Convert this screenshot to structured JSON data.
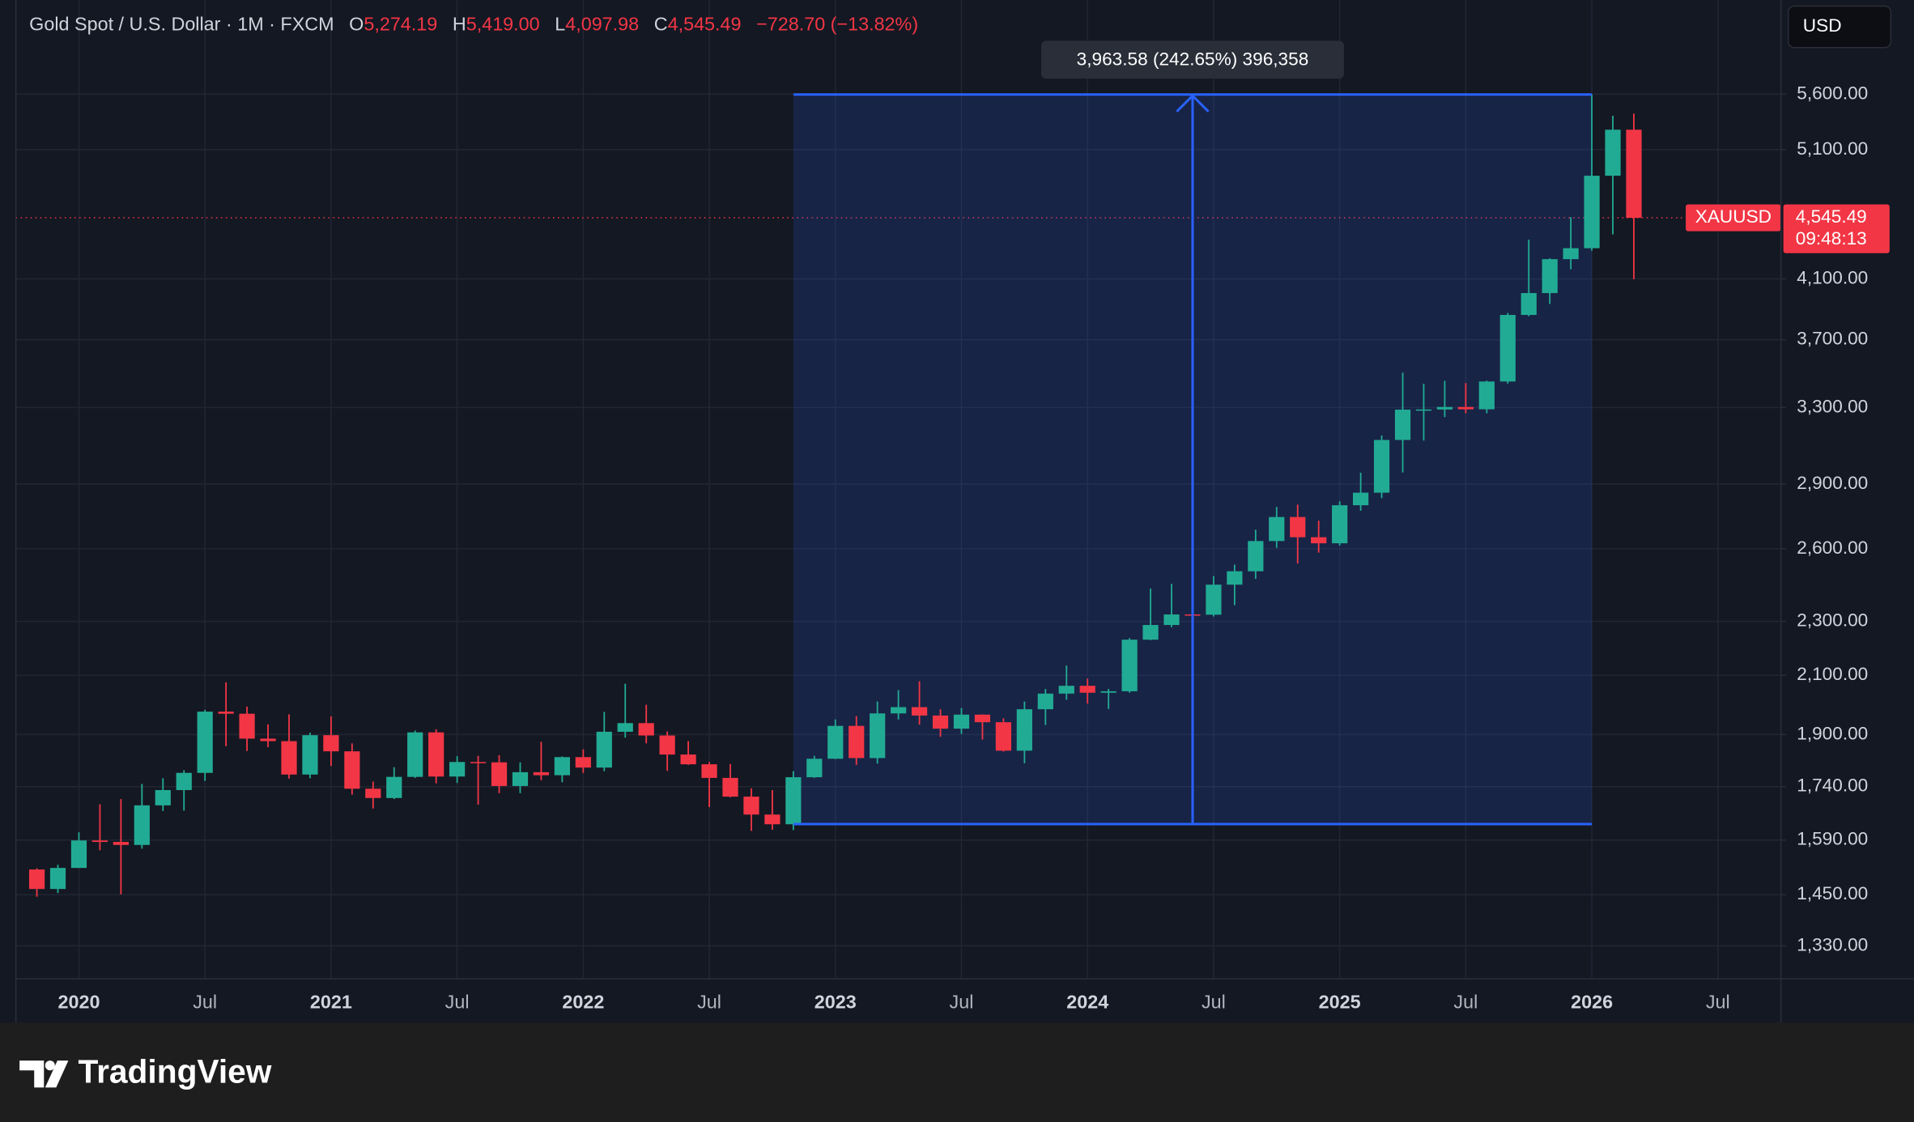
{
  "chart_data": {
    "type": "candlestick",
    "header": {
      "title": "Gold Spot / U.S. Dollar · 1M · FXCM",
      "ohlc": [
        {
          "key": "O",
          "value": "5,274.19"
        },
        {
          "key": "H",
          "value": "5,419.00"
        },
        {
          "key": "L",
          "value": "4,097.98"
        },
        {
          "key": "C",
          "value": "4,545.49"
        }
      ],
      "change": "−728.70 (−13.82%)"
    },
    "currency": "USD",
    "symbol": "XAUUSD",
    "last_price": {
      "value": 4545.49,
      "label": "4,545.49"
    },
    "countdown": "09:48:13",
    "up_color": "#22ab94",
    "down_color": "#f23645",
    "grid": true,
    "log_scale": true,
    "x": [
      "2019-11",
      "2019-12",
      "2020-01",
      "2020-02",
      "2020-03",
      "2020-04",
      "2020-05",
      "2020-06",
      "2020-07",
      "2020-08",
      "2020-09",
      "2020-10",
      "2020-11",
      "2020-12",
      "2021-01",
      "2021-02",
      "2021-03",
      "2021-04",
      "2021-05",
      "2021-06",
      "2021-07",
      "2021-08",
      "2021-09",
      "2021-10",
      "2021-11",
      "2021-12",
      "2022-01",
      "2022-02",
      "2022-03",
      "2022-04",
      "2022-05",
      "2022-06",
      "2022-07",
      "2022-08",
      "2022-09",
      "2022-10",
      "2022-11",
      "2022-12",
      "2023-01",
      "2023-02",
      "2023-03",
      "2023-04",
      "2023-05",
      "2023-06",
      "2023-07",
      "2023-08",
      "2023-09",
      "2023-10",
      "2023-11",
      "2023-12",
      "2024-01",
      "2024-02",
      "2024-03",
      "2024-04",
      "2024-05",
      "2024-06",
      "2024-07",
      "2024-08",
      "2024-09",
      "2024-10",
      "2024-11",
      "2024-12",
      "2025-01",
      "2025-02",
      "2025-03",
      "2025-04",
      "2025-05",
      "2025-06",
      "2025-07",
      "2025-08",
      "2025-09",
      "2025-10",
      "2025-11",
      "2025-12",
      "2026-01",
      "2026-02",
      "2026-03"
    ],
    "open": [
      1513,
      1464,
      1517,
      1589,
      1585,
      1577,
      1686,
      1730,
      1781,
      1975,
      1968,
      1887,
      1879,
      1776,
      1898,
      1847,
      1734,
      1707,
      1769,
      1907,
      1770,
      1814,
      1813,
      1742,
      1783,
      1774,
      1829,
      1797,
      1909,
      1937,
      1897,
      1837,
      1807,
      1766,
      1711,
      1660,
      1633,
      1768,
      1824,
      1928,
      1826,
      1969,
      1990,
      1962,
      1919,
      1965,
      1940,
      1849,
      1983,
      2036,
      2063,
      2039,
      2044,
      2230,
      2286,
      2327,
      2326,
      2447,
      2503,
      2634,
      2743,
      2651,
      2624,
      2798,
      2858,
      3124,
      3288,
      3289,
      3303,
      3290,
      3448,
      3858,
      4003,
      4239,
      4318,
      4880,
      5274.19
    ],
    "high": [
      1516,
      1525,
      1611,
      1689,
      1704,
      1748,
      1765,
      1789,
      1981,
      2075,
      1992,
      1933,
      1966,
      1906,
      1959,
      1872,
      1755,
      1798,
      1913,
      1917,
      1832,
      1833,
      1835,
      1813,
      1877,
      1831,
      1853,
      1974,
      2070,
      1998,
      1910,
      1879,
      1814,
      1808,
      1735,
      1730,
      1786,
      1833,
      1949,
      1960,
      2009,
      2048,
      2079,
      1983,
      1987,
      1966,
      1953,
      2009,
      2052,
      2135,
      2088,
      2052,
      2236,
      2431,
      2450,
      2388,
      2483,
      2531,
      2685,
      2790,
      2801,
      2726,
      2817,
      2956,
      3148,
      3500,
      3435,
      3452,
      3439,
      3453,
      3871,
      4381,
      4245,
      4550,
      5597.08,
      5400,
      5419
    ],
    "low": [
      1445,
      1454,
      1517,
      1563,
      1451,
      1567,
      1670,
      1671,
      1757,
      1863,
      1848,
      1860,
      1764,
      1765,
      1802,
      1717,
      1677,
      1704,
      1766,
      1750,
      1751,
      1688,
      1721,
      1721,
      1759,
      1753,
      1781,
      1786,
      1890,
      1872,
      1787,
      1805,
      1681,
      1709,
      1615,
      1618,
      1617,
      1766,
      1823,
      1805,
      1809,
      1949,
      1932,
      1893,
      1902,
      1884,
      1846,
      1810,
      1931,
      2015,
      2002,
      1984,
      2039,
      2228,
      2277,
      2286,
      2319,
      2364,
      2471,
      2604,
      2536,
      2583,
      2614,
      2772,
      2832,
      2957,
      3121,
      3247,
      3268,
      3268,
      3436,
      3850,
      3930,
      4167,
      4300,
      4420,
      4097.98
    ],
    "close": [
      1464,
      1517,
      1589,
      1585,
      1577,
      1686,
      1730,
      1781,
      1975,
      1968,
      1887,
      1879,
      1776,
      1898,
      1847,
      1734,
      1707,
      1769,
      1907,
      1770,
      1814,
      1813,
      1742,
      1783,
      1774,
      1829,
      1797,
      1909,
      1937,
      1897,
      1837,
      1807,
      1766,
      1711,
      1660,
      1633,
      1768,
      1824,
      1928,
      1826,
      1969,
      1990,
      1962,
      1919,
      1965,
      1940,
      1849,
      1983,
      2036,
      2063,
      2039,
      2044,
      2230,
      2286,
      2327,
      2326,
      2447,
      2503,
      2634,
      2743,
      2651,
      2624,
      2798,
      2858,
      3124,
      3288,
      3289,
      3303,
      3290,
      3448,
      3858,
      4003,
      4239,
      4318,
      4880,
      5274.19,
      4545.49
    ],
    "xlim": [
      "2019-10",
      "2026-10"
    ],
    "xticks": [
      {
        "value": "2020-01",
        "label": "2020"
      },
      {
        "value": "2020-07",
        "label": "Jul"
      },
      {
        "value": "2021-01",
        "label": "2021"
      },
      {
        "value": "2021-07",
        "label": "Jul"
      },
      {
        "value": "2022-01",
        "label": "2022"
      },
      {
        "value": "2022-07",
        "label": "Jul"
      },
      {
        "value": "2023-01",
        "label": "2023"
      },
      {
        "value": "2023-07",
        "label": "Jul"
      },
      {
        "value": "2024-01",
        "label": "2024"
      },
      {
        "value": "2024-07",
        "label": "Jul"
      },
      {
        "value": "2025-01",
        "label": "2025"
      },
      {
        "value": "2025-07",
        "label": "Jul"
      },
      {
        "value": "2026-01",
        "label": "2026"
      },
      {
        "value": "2026-07",
        "label": "Jul"
      }
    ],
    "ylim": [
      1258,
      6565
    ],
    "yticks": [
      {
        "value": 1330,
        "label": "1,330.00"
      },
      {
        "value": 1450,
        "label": "1,450.00"
      },
      {
        "value": 1590,
        "label": "1,590.00"
      },
      {
        "value": 1740,
        "label": "1,740.00"
      },
      {
        "value": 1900,
        "label": "1,900.00"
      },
      {
        "value": 2100,
        "label": "2,100.00"
      },
      {
        "value": 2300,
        "label": "2,300.00"
      },
      {
        "value": 2600,
        "label": "2,600.00"
      },
      {
        "value": 2900,
        "label": "2,900.00"
      },
      {
        "value": 3300,
        "label": "3,300.00"
      },
      {
        "value": 3700,
        "label": "3,700.00"
      },
      {
        "value": 4100,
        "label": "4,100.00"
      },
      {
        "value": 5100,
        "label": "5,100.00"
      },
      {
        "value": 5600,
        "label": "5,600.00"
      }
    ],
    "range_tool": {
      "label": "3,963.58 (242.65%) 396,358",
      "from": "2022-11",
      "to": "2026-01",
      "low": 1633.5,
      "high": 5597.08
    }
  },
  "footer": {
    "logo": "TradingView"
  }
}
